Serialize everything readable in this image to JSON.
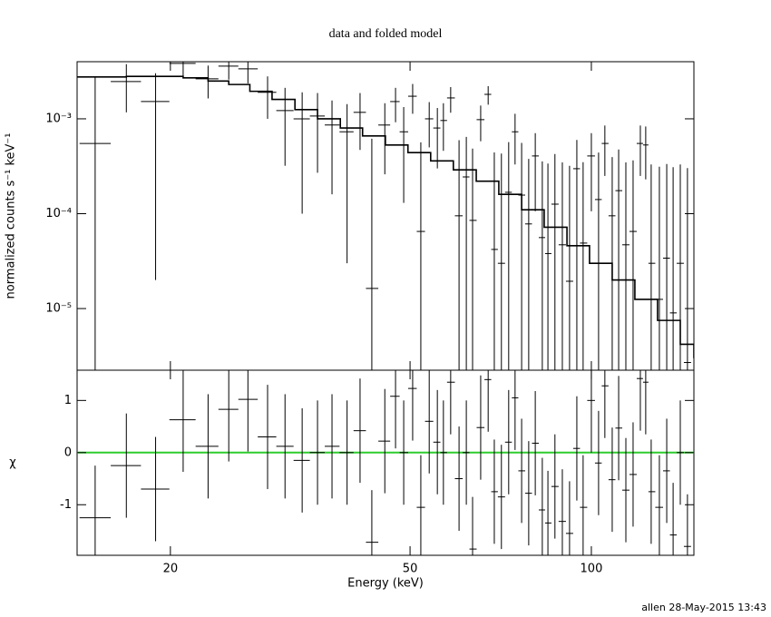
{
  "footer": "allen 28-May-2015 13:43",
  "chart_data": [
    {
      "type": "errorbar",
      "title": "data and folded model",
      "ylabel": "normalized counts s⁻¹ keV⁻¹",
      "log_y": true,
      "log_x": true,
      "color": "#000000",
      "xlim": [
        14.0,
        148.0
      ],
      "ylim": [
        2.24e-06,
        0.004
      ],
      "xticks": [
        20,
        50,
        100
      ],
      "yticks": [
        {
          "value": 1e-05,
          "label": "10⁻⁵"
        },
        {
          "value": 0.0001,
          "label": "10⁻⁴"
        },
        {
          "value": 0.001,
          "label": "10⁻³"
        }
      ],
      "series": [
        {
          "name": "data",
          "style": "errorbar",
          "x": [
            15.0,
            16.9,
            18.9,
            21.0,
            23.1,
            25.0,
            26.9,
            29.0,
            31.0,
            33.1,
            35.1,
            37.1,
            39.3,
            41.3,
            43.2,
            45.4,
            47.3,
            48.8,
            50.5,
            52.1,
            53.8,
            55.5,
            56.8,
            58.4,
            60.3,
            62.0,
            63.5,
            65.5,
            67.4,
            69.0,
            70.9,
            72.9,
            74.7,
            76.6,
            78.7,
            80.7,
            82.9,
            84.7,
            87.0,
            89.5,
            92.0,
            94.6,
            96.9,
            100,
            102.8,
            105.3,
            108.3,
            111.0,
            114.1,
            117.3,
            120.6,
            123.1,
            125.7,
            129.7,
            133.4,
            136.7,
            140.5,
            144.4
          ],
          "values": [
            0.00055,
            0.00247,
            0.00152,
            0.00384,
            0.00264,
            0.00359,
            0.00336,
            0.0019,
            0.00122,
            0.001,
            0.00107,
            0.00086,
            0.00073,
            0.00117,
            1.63e-05,
            0.00086,
            0.00152,
            0.00073,
            0.00173,
            6.5e-05,
            0.001,
            0.0008,
            0.00096,
            0.00166,
            9.5e-05,
            0.000244,
            8.5e-05,
            0.00098,
            0.00181,
            4.2e-05,
            3e-05,
            0.000168,
            0.00073,
            0.000157,
            7.8e-05,
            0.000406,
            5.6e-05,
            3.8e-05,
            0.000126,
            4.7e-05,
            1.94e-05,
            0.000298,
            4.9e-05,
            0.000406,
            0.000141,
            0.00055,
            9.5e-05,
            0.000175,
            4.7e-05,
            6.5e-05,
            0.00055,
            0.00053,
            3e-05,
            1.25e-05,
            3.4e-05,
            9e-06,
            3e-05,
            2.7e-06
          ],
          "errors": [
            0.0022,
            0.0013,
            0.0015,
            0.0011,
            0.001,
            0.001,
            0.001,
            0.0009,
            0.0009,
            0.0009,
            0.0008,
            0.0007,
            0.0007,
            0.0007,
            0.0006,
            0.0006,
            0.0006,
            0.0006,
            0.0006,
            0.0005,
            0.0005,
            0.0005,
            0.0005,
            0.0005,
            0.0005,
            0.0004,
            0.0004,
            0.0004,
            0.0004,
            0.0004,
            0.0004,
            0.0004,
            0.0004,
            0.0004,
            0.0003,
            0.0003,
            0.0003,
            0.0003,
            0.0003,
            0.0003,
            0.0003,
            0.0003,
            0.0003,
            0.0003,
            0.0003,
            0.0003,
            0.0003,
            0.0003,
            0.0003,
            0.0003,
            0.0003,
            0.0003,
            0.0003,
            0.0003,
            0.0003,
            0.0003,
            0.0003,
            0.0003
          ]
        },
        {
          "name": "model",
          "style": "step",
          "x": [
            14.0,
            15.0,
            16.9,
            18.9,
            21.0,
            23.1,
            25.0,
            27.1,
            29.5,
            32.2,
            35.1,
            38.3,
            41.7,
            45.5,
            49.6,
            54.1,
            59.0,
            64.4,
            70.2,
            76.6,
            83.5,
            91.1,
            99.3,
            108.3,
            118.1,
            128.8,
            140.5,
            148.0
          ],
          "values": [
            0.00276,
            0.00276,
            0.0028,
            0.0028,
            0.0027,
            0.0025,
            0.0023,
            0.00195,
            0.0016,
            0.00125,
            0.001,
            0.0008,
            0.00066,
            0.00053,
            0.00044,
            0.00036,
            0.00029,
            0.00022,
            0.00016,
            0.00011,
            7.2e-05,
            4.6e-05,
            3e-05,
            2e-05,
            1.25e-05,
            7.5e-06,
            4.2e-06,
            3e-06
          ]
        }
      ]
    },
    {
      "type": "errorbar",
      "xlabel": "Energy (keV)",
      "ylabel": "χ",
      "log_x": true,
      "color": "#000000",
      "zero_line_color": "#2ecc2e",
      "xlim": [
        14.0,
        148.0
      ],
      "ylim": [
        -1.97,
        1.58
      ],
      "xticks": [
        20,
        50,
        100
      ],
      "yticks": [
        -1,
        0,
        1
      ],
      "series": [
        {
          "name": "residuals",
          "style": "errorbar",
          "x": [
            15.0,
            16.9,
            18.9,
            21.0,
            23.1,
            25.0,
            26.9,
            29.0,
            31.0,
            33.1,
            35.1,
            37.1,
            39.3,
            41.3,
            43.2,
            45.4,
            47.3,
            48.8,
            50.5,
            52.1,
            53.8,
            55.5,
            56.8,
            58.4,
            60.3,
            62.0,
            63.5,
            65.5,
            67.4,
            69.0,
            70.9,
            72.9,
            74.7,
            76.6,
            78.7,
            80.7,
            82.9,
            84.7,
            87.0,
            89.5,
            92.0,
            94.6,
            96.9,
            100,
            102.8,
            105.3,
            108.3,
            111.0,
            114.1,
            117.3,
            120.6,
            123.1,
            125.7,
            129.7,
            133.4,
            136.7,
            140.5,
            144.4
          ],
          "values": [
            -1.25,
            -0.25,
            -0.7,
            0.63,
            0.12,
            0.83,
            1.02,
            0.3,
            0.12,
            -0.15,
            0,
            0.12,
            0,
            0.42,
            -1.72,
            0.22,
            1.08,
            0,
            1.23,
            -1.05,
            0.6,
            0.2,
            0,
            1.35,
            -0.5,
            0,
            -1.85,
            0.48,
            1.4,
            -0.75,
            -0.85,
            0.2,
            1.05,
            -0.35,
            -0.78,
            0.18,
            -1.1,
            -1.35,
            -0.65,
            -1.32,
            -1.55,
            0.08,
            -1.05,
            1.0,
            -0.2,
            1.28,
            -0.52,
            0.47,
            -0.72,
            -0.42,
            1.42,
            1.35,
            -0.75,
            -1.05,
            -0.35,
            -1.58,
            0,
            -1.8
          ],
          "errors": [
            1,
            1,
            1,
            1,
            1,
            1,
            1,
            1,
            1,
            1,
            1,
            1,
            1,
            1,
            1,
            1,
            1,
            1,
            1,
            1,
            1,
            1,
            1,
            1,
            1,
            1,
            1,
            1,
            1,
            1,
            1,
            1,
            1,
            1,
            1,
            1,
            1,
            1,
            1,
            1,
            1,
            1,
            1,
            1,
            1,
            1,
            1,
            1,
            1,
            1,
            1,
            1,
            1,
            1,
            1,
            1,
            1,
            1
          ]
        }
      ]
    }
  ]
}
